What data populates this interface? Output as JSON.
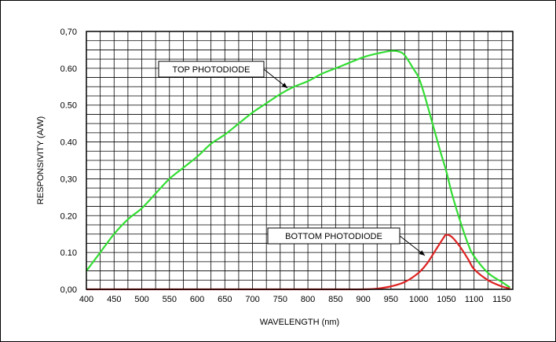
{
  "chart_data": {
    "type": "line",
    "xlabel": "WAVELENGTH (nm)",
    "ylabel": "RESPONSIVITY (A/W)",
    "xlim": [
      400,
      1170
    ],
    "ylim": [
      0,
      0.7
    ],
    "x_ticks": [
      "400",
      "450",
      "500",
      "550",
      "600",
      "650",
      "700",
      "750",
      "800",
      "850",
      "900",
      "950",
      "1000",
      "1050",
      "1100",
      "1150"
    ],
    "y_ticks": [
      "0,00",
      "0.10",
      "0.20",
      "0,30",
      "0.40",
      "0.50",
      "0.60",
      "0,70"
    ],
    "grid": true,
    "series": [
      {
        "name": "TOP PHOTODIODE",
        "color": "#33dd33",
        "x": [
          400,
          425,
          450,
          475,
          500,
          525,
          550,
          575,
          600,
          625,
          650,
          675,
          700,
          725,
          750,
          775,
          800,
          825,
          850,
          875,
          900,
          925,
          950,
          965,
          975,
          990,
          1000,
          1010,
          1025,
          1040,
          1050,
          1060,
          1075,
          1090,
          1100,
          1125,
          1150,
          1165
        ],
        "y": [
          0.05,
          0.1,
          0.15,
          0.19,
          0.22,
          0.26,
          0.3,
          0.33,
          0.36,
          0.395,
          0.42,
          0.45,
          0.48,
          0.505,
          0.53,
          0.55,
          0.565,
          0.585,
          0.6,
          0.615,
          0.63,
          0.64,
          0.647,
          0.645,
          0.635,
          0.6,
          0.575,
          0.53,
          0.45,
          0.37,
          0.32,
          0.26,
          0.185,
          0.12,
          0.09,
          0.045,
          0.02,
          0.005
        ]
      },
      {
        "name": "BOTTOM PHOTODIODE",
        "color": "#dd2222",
        "x": [
          400,
          500,
          600,
          700,
          800,
          850,
          900,
          925,
          950,
          975,
          1000,
          1015,
          1030,
          1045,
          1050,
          1060,
          1075,
          1090,
          1100,
          1125,
          1150,
          1165
        ],
        "y": [
          0,
          0,
          0,
          0,
          0,
          0,
          0,
          0.002,
          0.008,
          0.02,
          0.045,
          0.07,
          0.105,
          0.14,
          0.148,
          0.142,
          0.115,
          0.08,
          0.055,
          0.025,
          0.008,
          0.002
        ]
      }
    ],
    "annotations": [
      {
        "text": "TOP PHOTODIODE",
        "series": 0
      },
      {
        "text": "BOTTOM  PHOTODIODE",
        "series": 1
      }
    ]
  }
}
